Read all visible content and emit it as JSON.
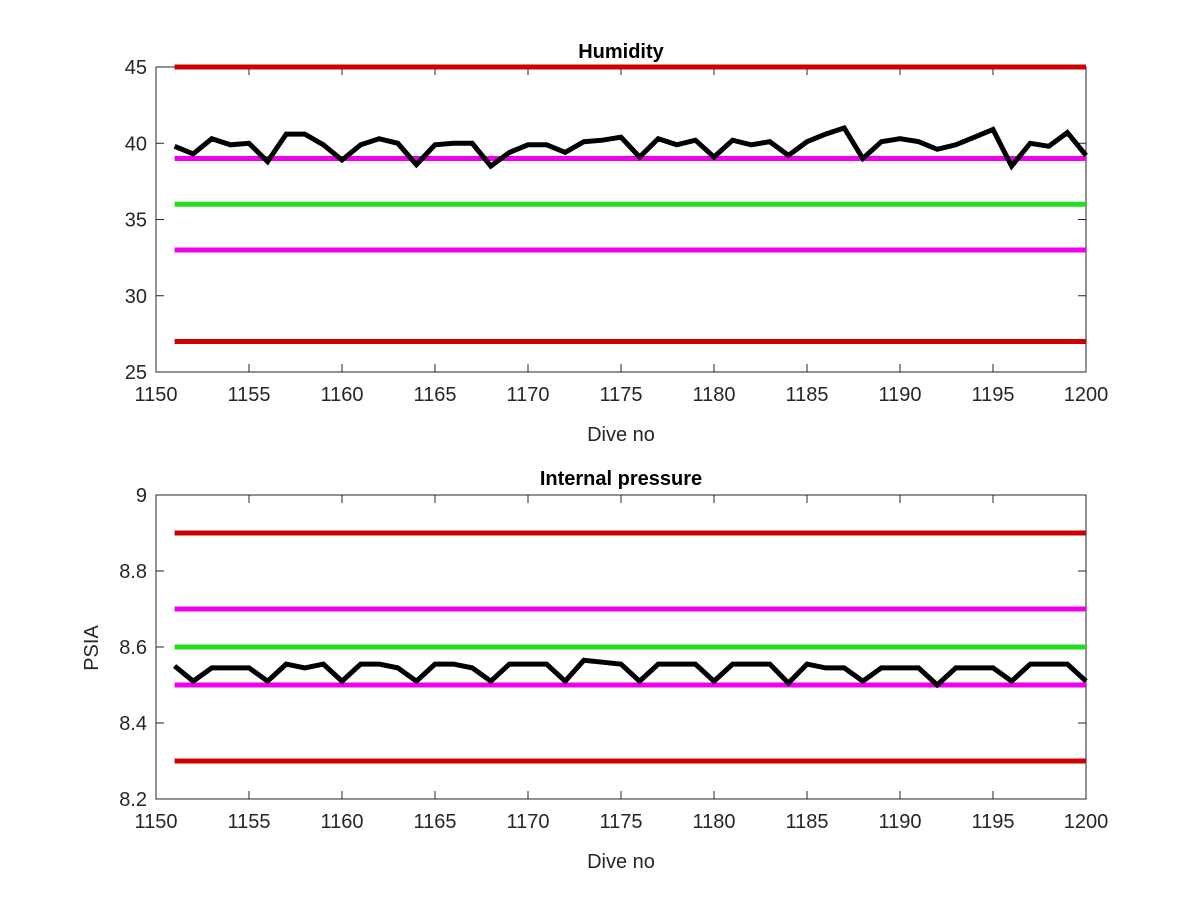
{
  "colors": {
    "red_limit": "#cc0000",
    "magenta_limit": "#ee00ee",
    "green_target": "#22dd22",
    "data_line": "#000000",
    "axes": "#262626"
  },
  "chart_data": [
    {
      "type": "line",
      "title": "Humidity",
      "xlabel": "Dive no",
      "ylabel": "",
      "xlim": [
        1150,
        1200
      ],
      "ylim": [
        25,
        45
      ],
      "xticks": [
        1150,
        1155,
        1160,
        1165,
        1170,
        1175,
        1180,
        1185,
        1190,
        1195,
        1200
      ],
      "yticks": [
        25,
        30,
        35,
        40,
        45
      ],
      "grid": false,
      "reference_lines": [
        {
          "y": 45,
          "color": "red"
        },
        {
          "y": 39,
          "color": "magenta"
        },
        {
          "y": 36,
          "color": "green"
        },
        {
          "y": 33,
          "color": "magenta"
        },
        {
          "y": 27,
          "color": "red"
        }
      ],
      "series": [
        {
          "x": [
            1151,
            1152,
            1153,
            1154,
            1155,
            1156,
            1157,
            1158,
            1159,
            1160,
            1161,
            1162,
            1163,
            1164,
            1165,
            1166,
            1167,
            1168,
            1169,
            1170,
            1171,
            1172,
            1173,
            1174,
            1175,
            1176,
            1177,
            1178,
            1179,
            1180,
            1181,
            1182,
            1183,
            1184,
            1185,
            1186,
            1187,
            1188,
            1189,
            1190,
            1191,
            1192,
            1193,
            1194,
            1195,
            1196,
            1197,
            1198,
            1199,
            1200
          ],
          "y": [
            39.8,
            39.3,
            40.3,
            39.9,
            40.0,
            38.8,
            40.6,
            40.6,
            39.9,
            38.9,
            39.9,
            40.3,
            40.0,
            38.6,
            39.9,
            40.0,
            40.0,
            38.5,
            39.4,
            39.9,
            39.9,
            39.4,
            40.1,
            40.2,
            40.4,
            39.1,
            40.3,
            39.9,
            40.2,
            39.1,
            40.2,
            39.9,
            40.1,
            39.2,
            40.1,
            40.6,
            41.0,
            39.0,
            40.1,
            40.3,
            40.1,
            39.6,
            39.9,
            40.4,
            40.9,
            38.5,
            40.0,
            39.8,
            40.7,
            39.2
          ]
        }
      ]
    },
    {
      "type": "line",
      "title": "Internal pressure",
      "xlabel": "Dive no",
      "ylabel": "PSIA",
      "xlim": [
        1150,
        1200
      ],
      "ylim": [
        8.2,
        9
      ],
      "xticks": [
        1150,
        1155,
        1160,
        1165,
        1170,
        1175,
        1180,
        1185,
        1190,
        1195,
        1200
      ],
      "yticks": [
        8.2,
        8.4,
        8.6,
        8.8,
        9
      ],
      "grid": false,
      "reference_lines": [
        {
          "y": 8.9,
          "color": "red"
        },
        {
          "y": 8.7,
          "color": "magenta"
        },
        {
          "y": 8.6,
          "color": "green"
        },
        {
          "y": 8.5,
          "color": "magenta"
        },
        {
          "y": 8.3,
          "color": "red"
        }
      ],
      "series": [
        {
          "x": [
            1151,
            1152,
            1153,
            1154,
            1155,
            1156,
            1157,
            1158,
            1159,
            1160,
            1161,
            1162,
            1163,
            1164,
            1165,
            1166,
            1167,
            1168,
            1169,
            1170,
            1171,
            1172,
            1173,
            1174,
            1175,
            1176,
            1177,
            1178,
            1179,
            1180,
            1181,
            1182,
            1183,
            1184,
            1185,
            1186,
            1187,
            1188,
            1189,
            1190,
            1191,
            1192,
            1193,
            1194,
            1195,
            1196,
            1197,
            1198,
            1199,
            1200
          ],
          "y": [
            8.55,
            8.51,
            8.545,
            8.545,
            8.545,
            8.51,
            8.555,
            8.545,
            8.555,
            8.51,
            8.555,
            8.555,
            8.545,
            8.51,
            8.555,
            8.555,
            8.545,
            8.51,
            8.555,
            8.555,
            8.555,
            8.51,
            8.565,
            8.56,
            8.555,
            8.51,
            8.555,
            8.555,
            8.555,
            8.51,
            8.555,
            8.555,
            8.555,
            8.505,
            8.555,
            8.545,
            8.545,
            8.51,
            8.545,
            8.545,
            8.545,
            8.5,
            8.545,
            8.545,
            8.545,
            8.51,
            8.555,
            8.555,
            8.555,
            8.51
          ]
        }
      ]
    }
  ]
}
